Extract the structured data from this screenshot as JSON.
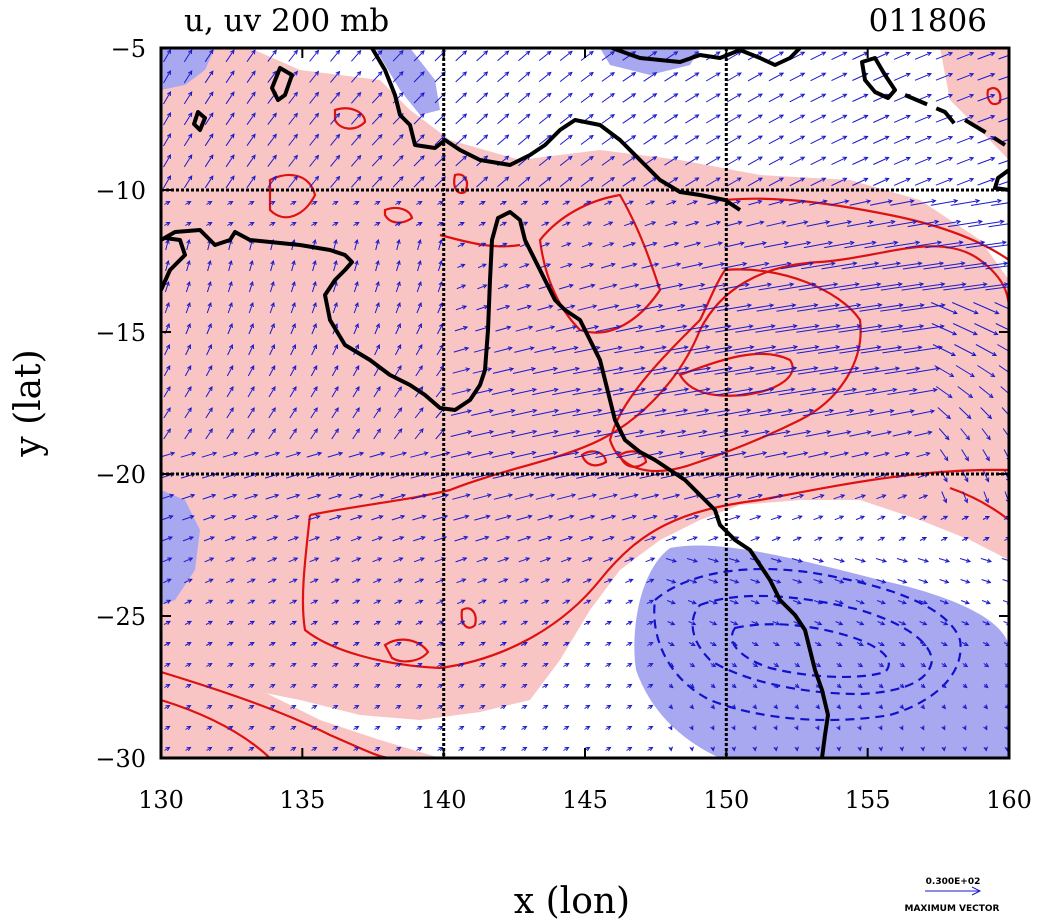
{
  "chart_data": {
    "type": "vector-contour-map",
    "title_left": "u, uv 200 mb",
    "title_right": "011806",
    "xlabel": "x (lon)",
    "ylabel": "y (lat)",
    "xlim": [
      130,
      160
    ],
    "ylim": [
      -30,
      -5
    ],
    "x_ticks": [
      130,
      135,
      140,
      145,
      150,
      155,
      160
    ],
    "y_ticks": [
      -5,
      -10,
      -15,
      -20,
      -25,
      -30
    ],
    "x_tick_labels": [
      "130",
      "135",
      "140",
      "145",
      "150",
      "155",
      "160"
    ],
    "y_tick_labels": [
      "−5",
      "−10",
      "−15",
      "−20",
      "−25",
      "−30"
    ],
    "grid_x": [
      140,
      150
    ],
    "grid_y": [
      -10,
      -20
    ],
    "vector_legend": {
      "value": "0.300E+02",
      "label": "MAXIMUM VECTOR"
    },
    "colors": {
      "positive_shade": "#f8c4c4",
      "negative_shade": "#a8a8f0",
      "positive_contour": "#dd1111",
      "negative_contour": "#1111cc",
      "vectors": "#1a1acc",
      "coastline": "#000000",
      "grid": "#000000"
    }
  }
}
